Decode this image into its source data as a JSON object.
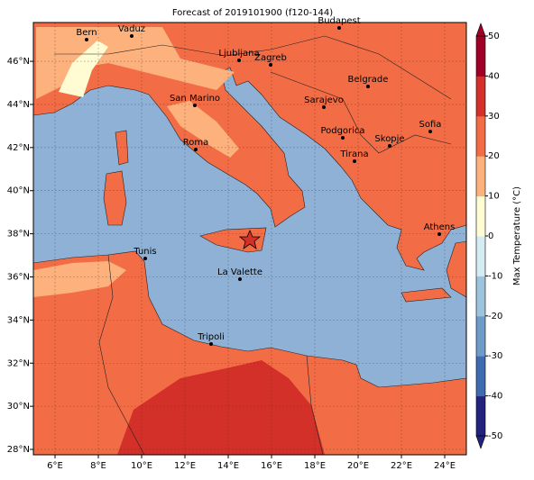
{
  "map": {
    "title": "Forecast of 2019101900 (f120-144)",
    "xlim": [
      5,
      25
    ],
    "ylim": [
      27.75,
      47.8
    ],
    "xticks": [
      {
        "value": 6,
        "label": "6°E"
      },
      {
        "value": 8,
        "label": "8°E"
      },
      {
        "value": 10,
        "label": "10°E"
      },
      {
        "value": 12,
        "label": "12°E"
      },
      {
        "value": 14,
        "label": "14°E"
      },
      {
        "value": 16,
        "label": "16°E"
      },
      {
        "value": 18,
        "label": "18°E"
      },
      {
        "value": 20,
        "label": "20°E"
      },
      {
        "value": 22,
        "label": "22°E"
      },
      {
        "value": 24,
        "label": "24°E"
      }
    ],
    "yticks": [
      {
        "value": 28,
        "label": "28°N"
      },
      {
        "value": 30,
        "label": "30°N"
      },
      {
        "value": 32,
        "label": "32°N"
      },
      {
        "value": 34,
        "label": "34°N"
      },
      {
        "value": 36,
        "label": "36°N"
      },
      {
        "value": 38,
        "label": "38°N"
      },
      {
        "value": 40,
        "label": "40°N"
      },
      {
        "value": 42,
        "label": "42°N"
      },
      {
        "value": 44,
        "label": "44°N"
      },
      {
        "value": 46,
        "label": "46°N"
      }
    ],
    "grid": true,
    "cities": [
      "Bern",
      "Vaduz",
      "Budapest",
      "Ljubljana",
      "Zagreb",
      "Belgrade",
      "San Marino",
      "Sarajevo",
      "Sofia",
      "Podgorica",
      "Skopje",
      "Roma",
      "Tirana",
      "Athens",
      "Tunis",
      "La Valette",
      "Tripoli"
    ],
    "colorbar": {
      "label": "Max Temperature (°C)",
      "lim": [
        -50,
        50
      ],
      "ticks": [
        -50,
        -40,
        -30,
        -20,
        -10,
        0,
        10,
        20,
        30,
        40,
        50
      ],
      "colors": [
        "#23237e",
        "#3f6bb0",
        "#6d9cc9",
        "#9dc3dd",
        "#d4ecf3",
        "#fffbd2",
        "#fdb27e",
        "#f26c45",
        "#d3302a",
        "#a10026"
      ]
    }
  }
}
